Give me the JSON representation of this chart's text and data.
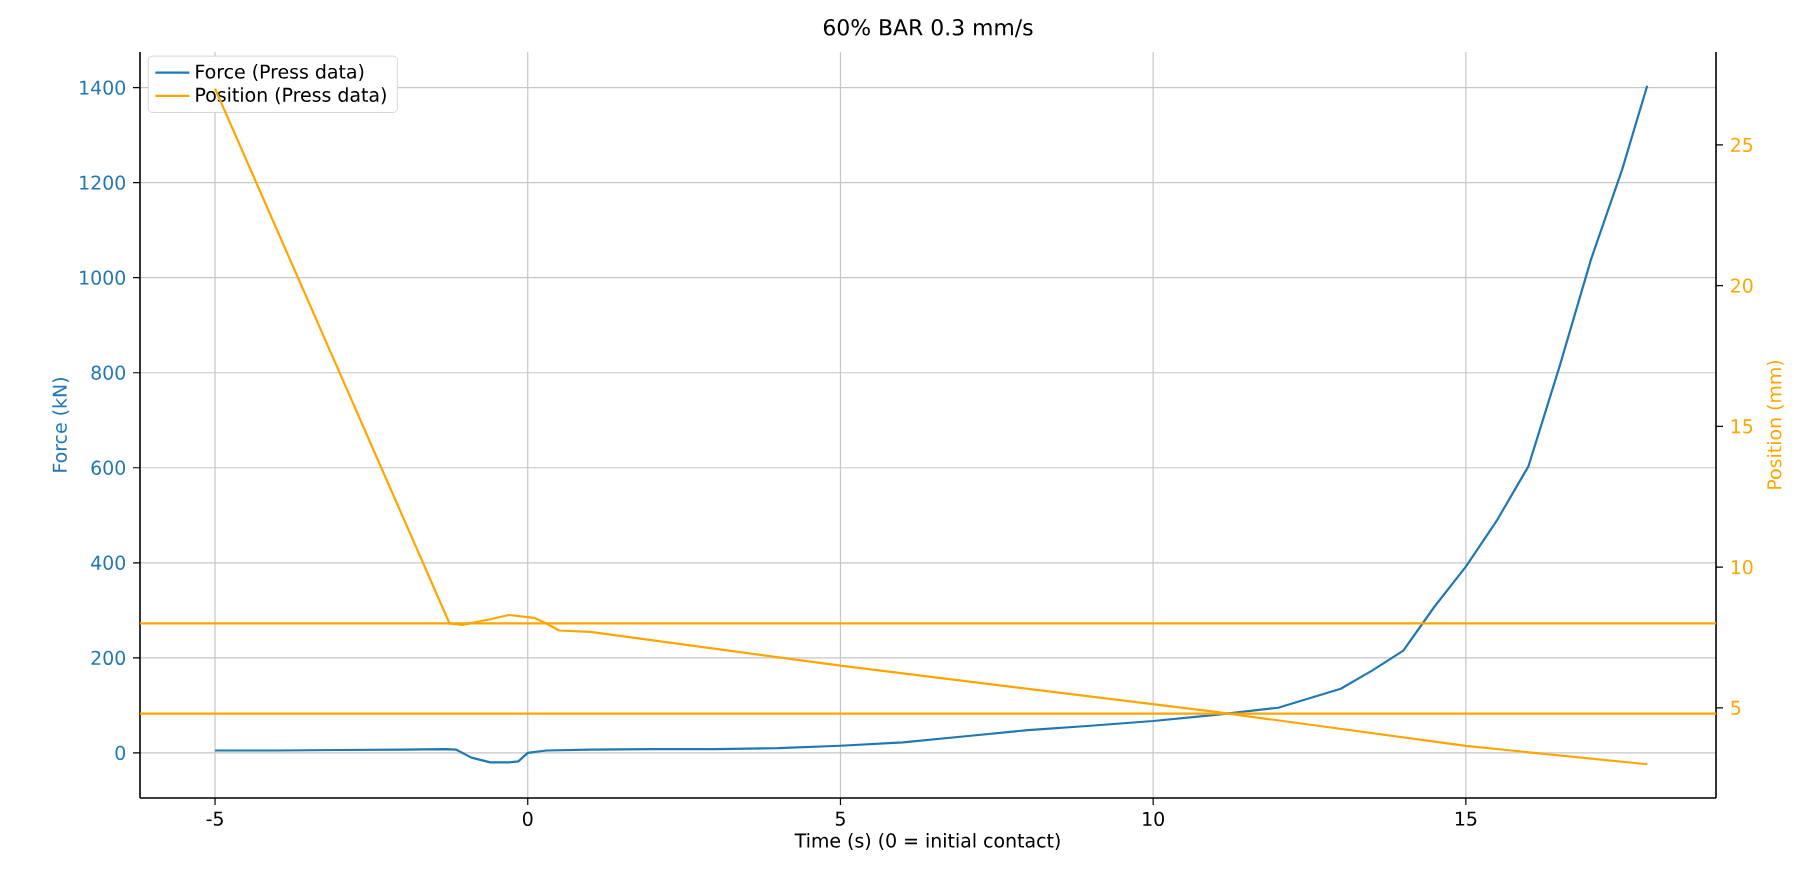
{
  "chart_data": {
    "type": "line",
    "title": "60% BAR 0.3 mm/s",
    "xlabel": "Time (s)  (0 = initial contact)",
    "ylabel": "Force (kN)",
    "y2label": "Position (mm)",
    "xlim": [
      -6.2,
      19.0
    ],
    "xticks": [
      -5,
      0,
      5,
      10,
      15
    ],
    "ylim": [
      -95,
      1475
    ],
    "yticks": [
      0,
      200,
      400,
      600,
      800,
      1000,
      1200,
      1400
    ],
    "y2lim": [
      1.8,
      28.3
    ],
    "y2ticks": [
      5,
      10,
      15,
      20,
      25
    ],
    "grid": true,
    "legend": "top left",
    "line_style": "solid",
    "marker": "none",
    "series": [
      {
        "name": "Force (Press data)",
        "color": "#1f77b4",
        "x": [
          -5,
          -4,
          -3,
          -2,
          -1.3,
          -1.15,
          -0.9,
          -0.6,
          -0.3,
          -0.15,
          0,
          0.3,
          1,
          2,
          3,
          4,
          5,
          6,
          7,
          8,
          9,
          10,
          11,
          12,
          13,
          13.5,
          14,
          14.5,
          15,
          15.5,
          16,
          16.5,
          17,
          17.5,
          17.9
        ],
        "values": [
          5,
          5,
          6,
          7,
          8,
          7,
          -10,
          -20,
          -20,
          -18,
          0,
          5,
          7,
          8,
          8,
          10,
          15,
          22,
          35,
          48,
          57,
          67,
          80,
          95,
          135,
          173,
          215,
          308,
          392,
          490,
          603,
          814,
          1038,
          1228,
          1404
        ]
      },
      {
        "name": "Position (Press data)",
        "color": "#ffa500",
        "axis": "y2",
        "x": [
          -5,
          -1.25,
          -1.05,
          -0.6,
          -0.3,
          0.1,
          0.3,
          0.5,
          1.0,
          5,
          11,
          15,
          17.9
        ],
        "values": [
          27.0,
          8.0,
          7.95,
          8.15,
          8.3,
          8.2,
          8.0,
          7.75,
          7.7,
          6.5,
          4.86,
          3.65,
          3.0
        ]
      }
    ],
    "ref_lines": [
      {
        "axis": "y2",
        "value": 8.0,
        "color": "#ffa500"
      },
      {
        "axis": "y2",
        "value": 4.8,
        "color": "#ffa500"
      }
    ]
  }
}
